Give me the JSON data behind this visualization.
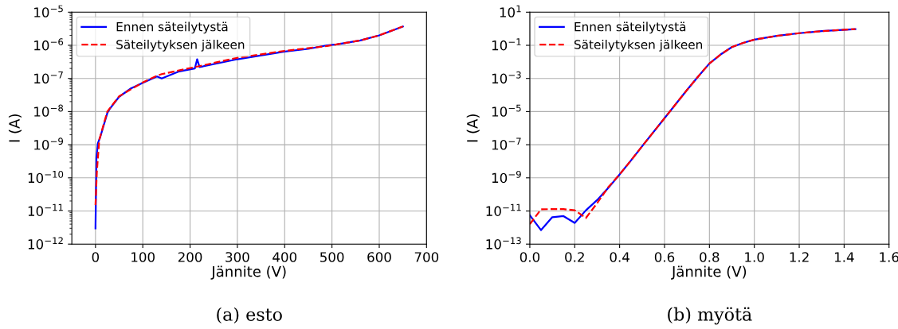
{
  "chart_data": [
    {
      "type": "line",
      "xlabel": "Jännite (V)",
      "ylabel": "I (A)",
      "log": "y",
      "grid": true,
      "legend": "top left",
      "xlim": [
        -50,
        700
      ],
      "xticks": [
        0,
        100,
        200,
        300,
        400,
        500,
        600,
        700
      ],
      "ylim": [
        1e-12,
        1e-05
      ],
      "yticks": [
        {
          "value": 1e-12,
          "label": "10$^{−12}$"
        },
        {
          "value": 1e-11,
          "label": "10$^{−11}$"
        },
        {
          "value": 1e-10,
          "label": "10$^{−10}$"
        },
        {
          "value": 1e-09,
          "label": "10$^{−9}$"
        },
        {
          "value": 1e-08,
          "label": "10$^{−8}$"
        },
        {
          "value": 1e-07,
          "label": "10$^{−7}$"
        },
        {
          "value": 1e-06,
          "label": "10$^{−6}$"
        },
        {
          "value": 1e-05,
          "label": "10$^{−5}$"
        }
      ],
      "annotations": [
        "(a) esto"
      ],
      "series": [
        {
          "name": "Ennen säteilytystä",
          "color": "#0000ff",
          "line_style": "solid",
          "x": [
            0,
            2,
            5,
            10,
            25,
            30,
            50,
            75,
            100,
            130,
            140,
            175,
            210,
            215,
            220,
            300,
            400,
            450,
            490,
            510,
            560,
            600,
            650
          ],
          "values": [
            3e-12,
            4e-10,
            1.1e-09,
            1.7e-09,
            9e-09,
            1.2e-08,
            2.8e-08,
            5e-08,
            7.4e-08,
            1.15e-07,
            1e-07,
            1.6e-07,
            2e-07,
            3.8e-07,
            2.2e-07,
            3.8e-07,
            6.5e-07,
            7.8e-07,
            1e-06,
            1.07e-06,
            1.4e-06,
            2e-06,
            3.7e-06
          ]
        },
        {
          "name": "Säteilytyksen jälkeen",
          "color": "#ff0000",
          "line_style": "dashed",
          "x": [
            0,
            3,
            8,
            25,
            50,
            100,
            130,
            140,
            210,
            300,
            400,
            490,
            510,
            560,
            600,
            650
          ],
          "values": [
            1.5e-11,
            1.6e-10,
            1.4e-09,
            1e-08,
            2.9e-08,
            7.6e-08,
            1.2e-07,
            1.35e-07,
            2.2e-07,
            4.2e-07,
            6.8e-07,
            9.5e-07,
            1.07e-06,
            1.4e-06,
            2e-06,
            3.7e-06
          ]
        }
      ]
    },
    {
      "type": "line",
      "xlabel": "Jännite (V)",
      "ylabel": "I (A)",
      "log": "y",
      "grid": true,
      "legend": "top left",
      "xlim": [
        0,
        1.6
      ],
      "xticks": [
        {
          "value": 0,
          "label": "0.0"
        },
        {
          "value": 0.2,
          "label": "0.2"
        },
        {
          "value": 0.4,
          "label": "0.4"
        },
        {
          "value": 0.6,
          "label": "0.6"
        },
        {
          "value": 0.8,
          "label": "0.8"
        },
        {
          "value": 1,
          "label": "1.0"
        },
        {
          "value": 1.2,
          "label": "1.2"
        },
        {
          "value": 1.4,
          "label": "1.4"
        },
        {
          "value": 1.6,
          "label": "1.6"
        }
      ],
      "ylim": [
        1e-13,
        10
      ],
      "yticks": [
        {
          "value": 1e-13,
          "label": "10$^{−13}$"
        },
        {
          "value": 1e-11,
          "label": "10$^{−11}$"
        },
        {
          "value": 1e-09,
          "label": "10$^{−9}$"
        },
        {
          "value": 1e-07,
          "label": "10$^{−7}$"
        },
        {
          "value": 1e-05,
          "label": "10$^{−5}$"
        },
        {
          "value": 0.001,
          "label": "10$^{−3}$"
        },
        {
          "value": 0.1,
          "label": "10$^{−1}$"
        },
        {
          "value": 10,
          "label": "10$^{1}$"
        }
      ],
      "annotations": [
        "(b) myötä"
      ],
      "series": [
        {
          "name": "Ennen säteilytystä",
          "color": "#0000ff",
          "line_style": "solid",
          "x": [
            0,
            0.05,
            0.1,
            0.15,
            0.2,
            0.25,
            0.3,
            0.35,
            0.4,
            0.45,
            0.5,
            0.6,
            0.7,
            0.75,
            0.8,
            0.85,
            0.9,
            0.95,
            1.0,
            1.1,
            1.2,
            1.3,
            1.45
          ],
          "values": [
            5.5e-12,
            7e-13,
            4.2e-12,
            4.9e-12,
            1.9e-12,
            1.1e-11,
            4.6e-11,
            2.5e-10,
            1.6e-09,
            1.1e-08,
            8e-08,
            4e-06,
            0.0002,
            0.0013,
            0.008,
            0.028,
            0.078,
            0.14,
            0.22,
            0.37,
            0.54,
            0.72,
            0.95
          ]
        },
        {
          "name": "Säteilytyksen jälkeen",
          "color": "#ff0000",
          "line_style": "dashed",
          "x": [
            0,
            0.05,
            0.1,
            0.15,
            0.2,
            0.25,
            0.3,
            0.35,
            0.4,
            0.45,
            0.5,
            0.6,
            0.7,
            0.75,
            0.8,
            0.85,
            0.9,
            0.95,
            1.0,
            1.1,
            1.2,
            1.3,
            1.45
          ],
          "values": [
            1.6e-12,
            1.25e-11,
            1.3e-11,
            1.3e-11,
            1.1e-11,
            3.8e-12,
            3e-11,
            2.8e-10,
            1.6e-09,
            1.1e-08,
            8e-08,
            4e-06,
            0.0002,
            0.0013,
            0.008,
            0.028,
            0.078,
            0.14,
            0.22,
            0.37,
            0.54,
            0.72,
            0.95
          ]
        }
      ]
    }
  ]
}
